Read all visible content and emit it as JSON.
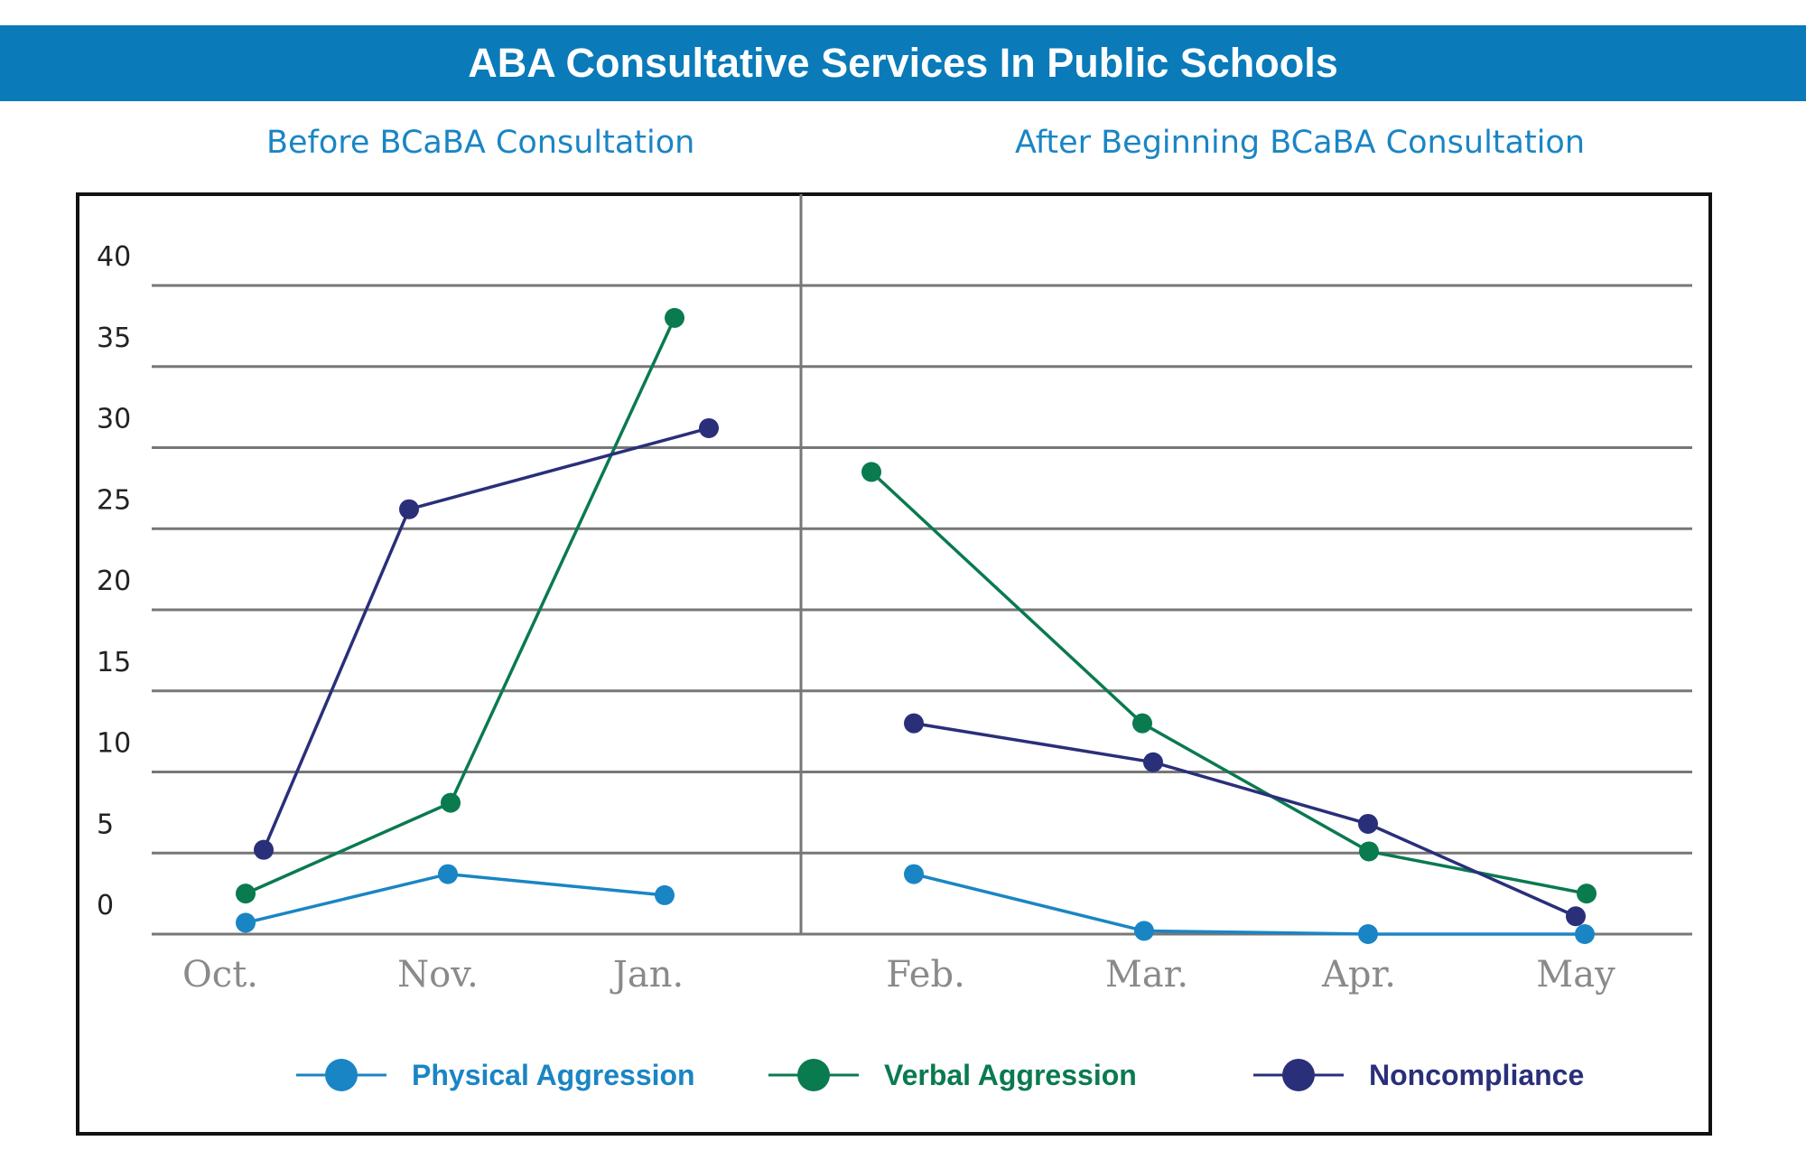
{
  "title": "ABA Consultative Services In Public Schools",
  "colors": {
    "banner": "#0a7ab8",
    "panel_title": "#1a85c4",
    "physical": "#1a85c4",
    "verbal": "#0a7a4f",
    "noncompliance": "#2a2f7a",
    "grid": "#777777",
    "tick": "#8a8a8a"
  },
  "chart_data": {
    "type": "line",
    "title": "ABA Consultative Services In Public Schools",
    "xlabel": "",
    "ylabel": "",
    "ylim": [
      0,
      40
    ],
    "yticks": [
      "0",
      "5",
      "10",
      "15",
      "20",
      "25",
      "30",
      "35",
      "40"
    ],
    "panels": [
      {
        "title": "Before BCaBA Consultation",
        "categories": [
          "Oct.",
          "Nov.",
          "Jan."
        ],
        "series": [
          {
            "name": "Physical Aggression",
            "x": [
              "Oct.",
              "Nov.",
              "Jan."
            ],
            "values": [
              0.7,
              3.7,
              2.4
            ]
          },
          {
            "name": "Verbal Aggression",
            "x": [
              "Oct.",
              "Nov.",
              "Jan."
            ],
            "values": [
              2.5,
              8.1,
              38
            ]
          },
          {
            "name": "Noncompliance",
            "x": [
              "Oct.",
              "Nov.",
              "Jan."
            ],
            "values": [
              5.2,
              26.2,
              31.2
            ]
          }
        ]
      },
      {
        "title": "After Beginning BCaBA Consultation",
        "categories": [
          "Feb.",
          "Mar.",
          "Apr.",
          "May"
        ],
        "series": [
          {
            "name": "Physical Aggression",
            "x": [
              "Feb.",
              "Mar.",
              "Apr.",
              "May"
            ],
            "values": [
              3.7,
              0.2,
              0,
              0
            ]
          },
          {
            "name": "Verbal Aggression",
            "x": [
              "Feb.",
              "Mar.",
              "Apr.",
              "May"
            ],
            "values": [
              28.5,
              13,
              5.1,
              2.5
            ]
          },
          {
            "name": "Noncompliance",
            "x": [
              "Feb.",
              "Mar.",
              "Apr.",
              "May"
            ],
            "values": [
              13,
              10.6,
              6.8,
              1.1
            ]
          }
        ]
      }
    ],
    "legend": [
      "Physical Aggression",
      "Verbal Aggression",
      "Noncompliance"
    ],
    "legend_position": "bottom"
  }
}
